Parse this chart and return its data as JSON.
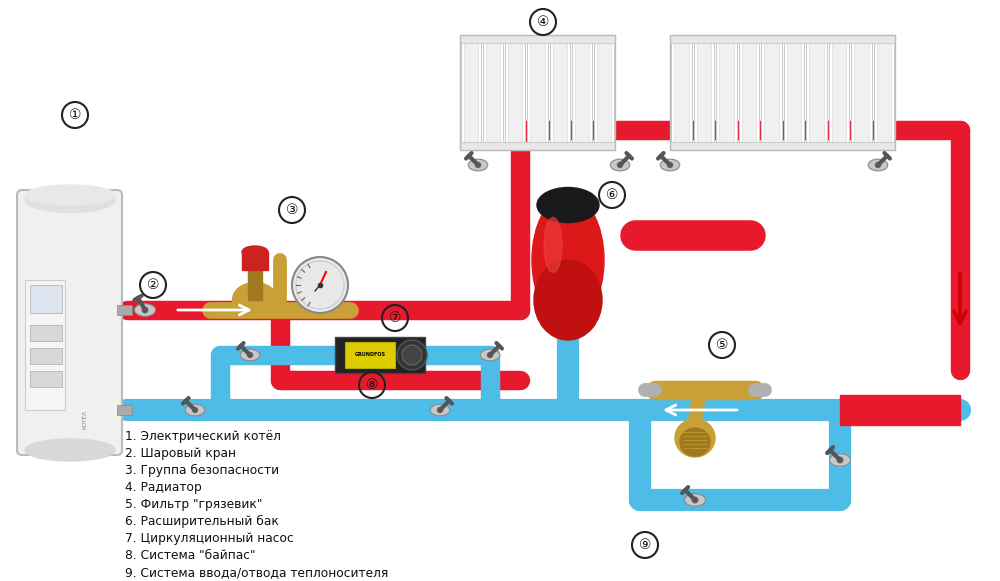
{
  "bg_color": "#ffffff",
  "red": "#e8192c",
  "blue": "#4dbde8",
  "legend_items": [
    "1. Электрический котёл",
    "2. Шаровый кран",
    "3. Группа безопасности",
    "4. Радиатор",
    "5. Фильтр \"грязевик\"",
    "6. Расширительный бак",
    "7. Циркуляционный насос",
    "8. Система \"байпас\"",
    "9. Система ввода/отвода теплоносителя"
  ]
}
